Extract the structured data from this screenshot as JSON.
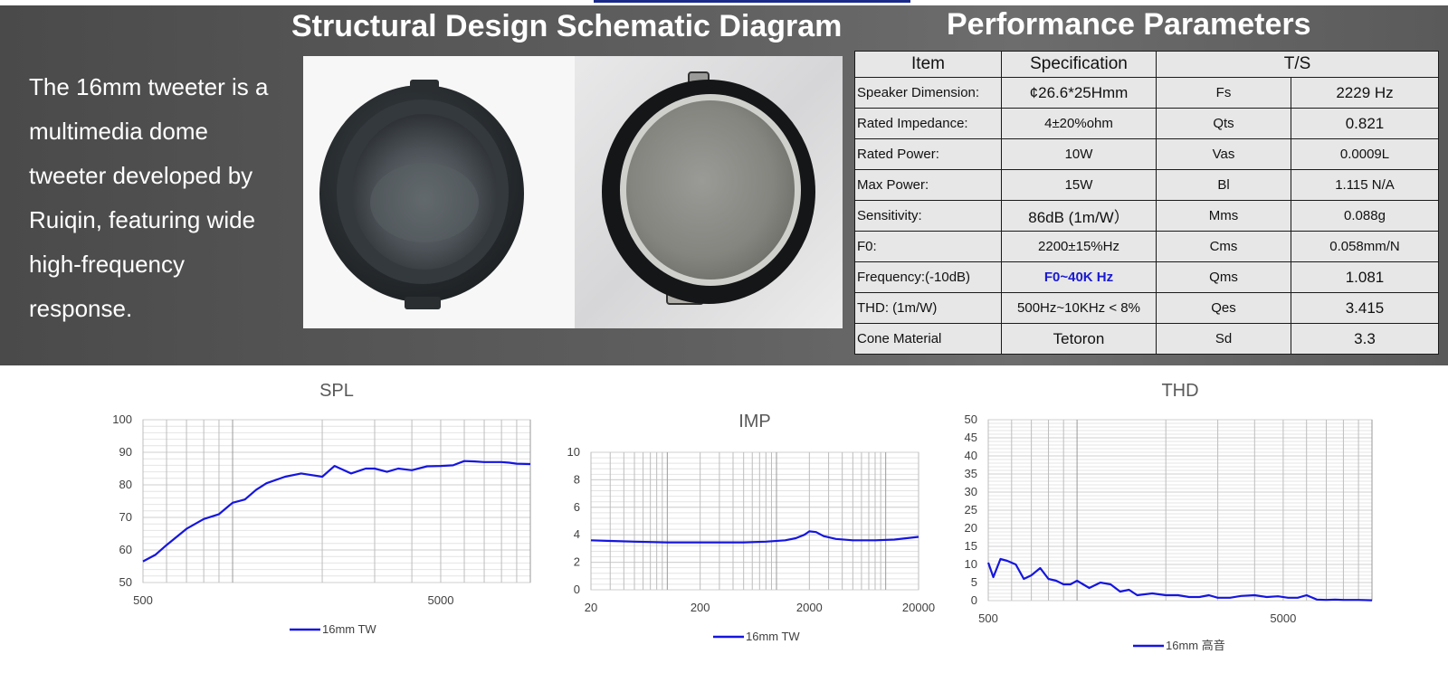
{
  "intro_text": "The 16mm tweeter is a multimedia dome tweeter developed by Ruiqin, featuring wide high-frequency response.",
  "schematic_title": "Structural Design Schematic Diagram",
  "performance_title": "Performance Parameters",
  "table": {
    "headers": {
      "item": "Item",
      "spec": "Specification",
      "ts": "T/S"
    },
    "rows": [
      {
        "item": "Speaker Dimension:",
        "spec": "¢26.6*25Hmm",
        "param": "Fs",
        "value": "2229 Hz"
      },
      {
        "item": "Rated Impedance:",
        "spec": "4±20%ohm",
        "param": "Qts",
        "value": "0.821"
      },
      {
        "item": "Rated Power:",
        "spec": "10W",
        "param": "Vas",
        "value": "0.0009L"
      },
      {
        "item": "Max Power:",
        "spec": "15W",
        "param": "Bl",
        "value": "1.115 N/A"
      },
      {
        "item": "Sensitivity:",
        "spec": "86dB (1m/W）",
        "param": "Mms",
        "value": "0.088g"
      },
      {
        "item": "F0:",
        "spec": "2200±15%Hz",
        "param": "Cms",
        "value": "0.058mm/N"
      },
      {
        "item": "Frequency:(-10dB)",
        "spec": "F0~40K Hz",
        "param": "Qms",
        "value": "1.081"
      },
      {
        "item": "THD: (1m/W)",
        "spec": "500Hz~10KHz < 8%",
        "param": "Qes",
        "value": "3.415"
      },
      {
        "item": "Cone  Material",
        "spec": "Tetoron",
        "param": "Sd",
        "value": "3.3"
      }
    ]
  },
  "colors": {
    "line": "#1515e0",
    "background_band": "#555555",
    "table_bg": "#e7e7e7",
    "highlight": "#1a1ad0"
  },
  "chart_data": [
    {
      "type": "line",
      "title": "SPL",
      "x_scale": "log",
      "xlim": [
        500,
        10000
      ],
      "ylim": [
        50,
        100
      ],
      "y_ticks": [
        50,
        60,
        70,
        80,
        90,
        100
      ],
      "x_tick_labels": [
        500,
        5000
      ],
      "grid": true,
      "legend_position": "bottom",
      "series": [
        {
          "name": "16mm TW",
          "x": [
            500,
            550,
            600,
            700,
            800,
            900,
            1000,
            1100,
            1200,
            1300,
            1500,
            1700,
            2000,
            2200,
            2500,
            2800,
            3000,
            3300,
            3600,
            4000,
            4500,
            5000,
            5500,
            6000,
            6500,
            7000,
            8000,
            8500,
            9000,
            10000
          ],
          "y": [
            56.5,
            58.5,
            61.5,
            66.5,
            69.5,
            71,
            74.5,
            75.5,
            78.5,
            80.5,
            82.5,
            83.5,
            82.5,
            85.8,
            83.5,
            85,
            85,
            84,
            85,
            84.5,
            85.7,
            85.8,
            86,
            87.3,
            87.2,
            87,
            87,
            86.8,
            86.5,
            86.4
          ]
        }
      ]
    },
    {
      "type": "line",
      "title": "IMP",
      "x_scale": "log",
      "xlim": [
        20,
        20000
      ],
      "ylim": [
        0,
        10
      ],
      "y_ticks": [
        0,
        2,
        4,
        6,
        8,
        10
      ],
      "x_tick_labels": [
        20,
        200,
        2000,
        20000
      ],
      "grid": true,
      "legend_position": "bottom",
      "series": [
        {
          "name": "16mm TW",
          "x": [
            20,
            30,
            50,
            100,
            200,
            500,
            800,
            1200,
            1500,
            1800,
            2000,
            2300,
            2700,
            3500,
            5000,
            8000,
            12000,
            20000
          ],
          "y": [
            3.6,
            3.55,
            3.5,
            3.45,
            3.45,
            3.45,
            3.5,
            3.6,
            3.75,
            4.0,
            4.25,
            4.2,
            3.9,
            3.7,
            3.6,
            3.6,
            3.65,
            3.85
          ]
        }
      ]
    },
    {
      "type": "line",
      "title": "THD",
      "x_scale": "log",
      "xlim": [
        500,
        10000
      ],
      "ylim": [
        0,
        50
      ],
      "y_ticks": [
        0,
        5,
        10,
        15,
        20,
        25,
        30,
        35,
        40,
        45,
        50
      ],
      "x_tick_labels": [
        500,
        5000
      ],
      "grid": true,
      "legend_position": "bottom",
      "series": [
        {
          "name": "16mm 高音",
          "x": [
            500,
            520,
            550,
            580,
            620,
            660,
            700,
            750,
            800,
            850,
            900,
            950,
            1000,
            1100,
            1200,
            1300,
            1400,
            1500,
            1600,
            1800,
            2000,
            2200,
            2400,
            2600,
            2800,
            3000,
            3300,
            3600,
            4000,
            4400,
            4800,
            5200,
            5600,
            6000,
            6500,
            7000,
            7500,
            8000,
            9000,
            10000
          ],
          "y": [
            10.5,
            6.5,
            11.5,
            11,
            10,
            6,
            7,
            9,
            6,
            5.5,
            4.5,
            4.5,
            5.5,
            3.5,
            5,
            4.5,
            2.5,
            3,
            1.5,
            2,
            1.5,
            1.5,
            1,
            1,
            1.5,
            0.8,
            0.8,
            1.3,
            1.5,
            1,
            1.2,
            0.8,
            0.8,
            1.5,
            0.3,
            0.2,
            0.3,
            0.2,
            0.2,
            0.1
          ]
        }
      ]
    }
  ]
}
